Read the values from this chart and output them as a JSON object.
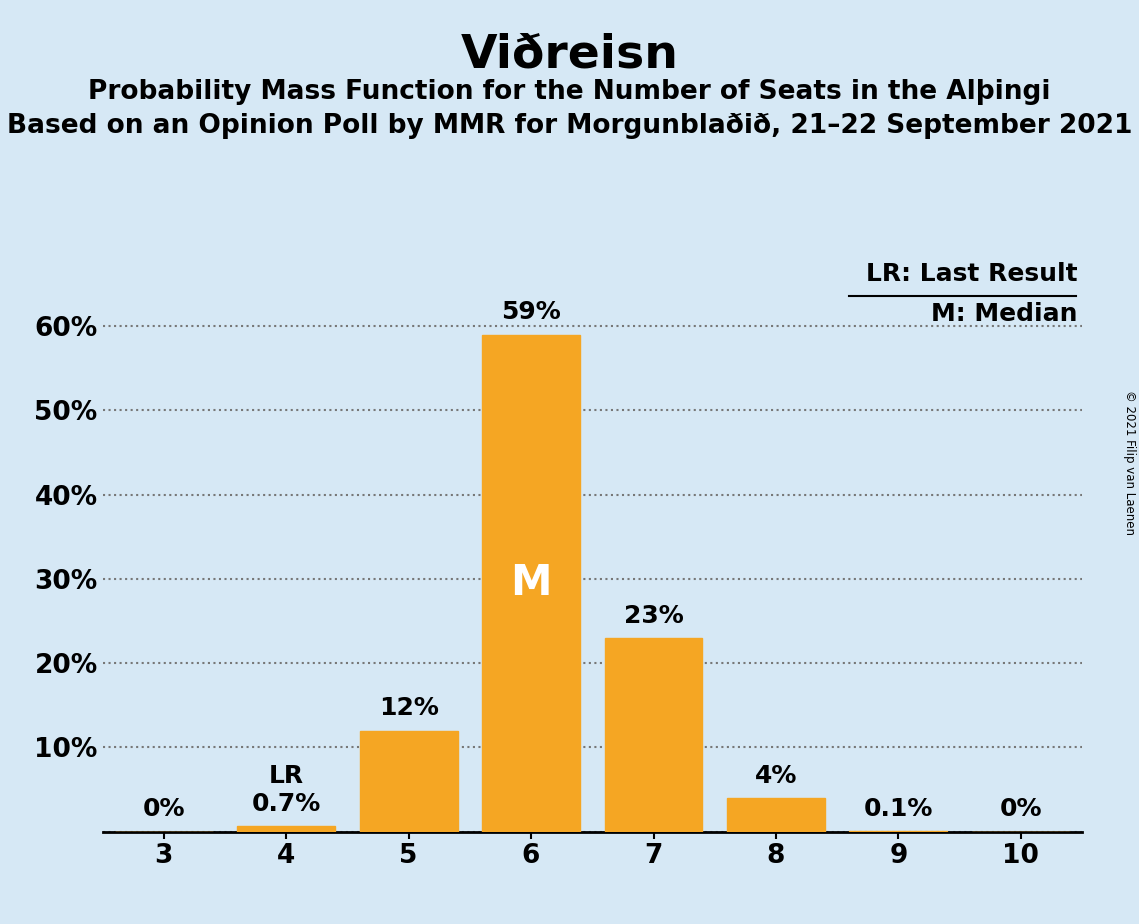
{
  "title": "Viðreisn",
  "subtitle1": "Probability Mass Function for the Number of Seats in the Alþingi",
  "subtitle2": "Based on an Opinion Poll by MMR for Morgunblaðið, 21–22 September 2021",
  "copyright": "© 2021 Filip van Laenen",
  "categories": [
    3,
    4,
    5,
    6,
    7,
    8,
    9,
    10
  ],
  "values": [
    0.0,
    0.7,
    12.0,
    59.0,
    23.0,
    4.0,
    0.1,
    0.0
  ],
  "labels": [
    "0%",
    "0.7%",
    "12%",
    "59%",
    "23%",
    "4%",
    "0.1%",
    "0%"
  ],
  "bar_color": "#F5A623",
  "background_color": "#D6E8F5",
  "median_seat": 6,
  "last_result_seat": 4,
  "legend_lr": "LR: Last Result",
  "legend_m": "M: Median",
  "yticks": [
    0,
    10,
    20,
    30,
    40,
    50,
    60
  ],
  "ytick_labels": [
    "",
    "10%",
    "20%",
    "30%",
    "40%",
    "50%",
    "60%"
  ],
  "ylim": [
    0,
    68
  ],
  "title_fontsize": 34,
  "subtitle_fontsize": 19,
  "label_fontsize": 18,
  "tick_fontsize": 19,
  "legend_fontsize": 18,
  "median_label_color": "#FFFFFF",
  "median_label_fontsize": 30,
  "lr_fontsize": 18
}
